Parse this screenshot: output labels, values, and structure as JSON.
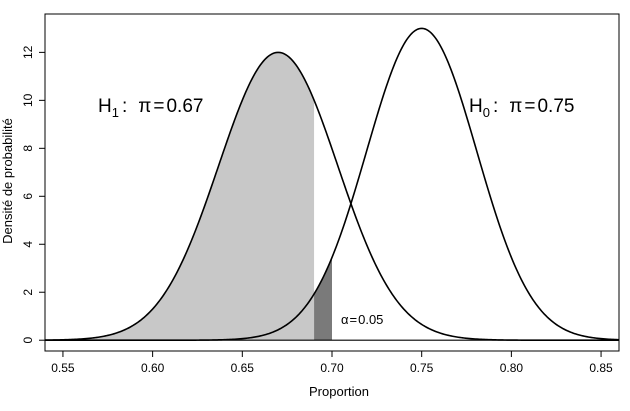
{
  "chart_data": {
    "type": "line",
    "title": "",
    "xlabel": "Proportion",
    "ylabel": "Densité de probabilité",
    "xlim": [
      0.54,
      0.86
    ],
    "ylim": [
      -0.45,
      13.6
    ],
    "x_ticks": [
      "0.55",
      "0.60",
      "0.65",
      "0.70",
      "0.75",
      "0.80",
      "0.85"
    ],
    "x_tick_values": [
      0.55,
      0.6,
      0.65,
      0.7,
      0.75,
      0.8,
      0.85
    ],
    "y_ticks": [
      "0",
      "2",
      "4",
      "6",
      "8",
      "10",
      "12"
    ],
    "y_tick_values": [
      0,
      2,
      4,
      6,
      8,
      10,
      12
    ],
    "series": [
      {
        "name": "H1",
        "distribution": "normal",
        "mean": 0.67,
        "sd": 0.0332,
        "peak_density": 12.0,
        "color": "#000000"
      },
      {
        "name": "H0",
        "distribution": "normal",
        "mean": 0.75,
        "sd": 0.0307,
        "peak_density": 13.0,
        "color": "#000000"
      }
    ],
    "shaded_regions": [
      {
        "under": "H1",
        "from": 0.54,
        "to": 0.69,
        "color": "#c8c8c8"
      },
      {
        "under": "H0",
        "from": 0.69,
        "to": 0.7,
        "color": "#7a7a7a"
      }
    ],
    "annotations": {
      "h1": {
        "letter": "H",
        "sub": "1",
        "colon": ":",
        "pi": "π",
        "eq": "=",
        "value": "0.67"
      },
      "h0": {
        "letter": "H",
        "sub": "0",
        "colon": ":",
        "pi": "π",
        "eq": "=",
        "value": "0.75"
      },
      "alpha": {
        "symbol": "α",
        "eq": "=",
        "value": "0.05"
      }
    },
    "grid": false,
    "legend": "none"
  }
}
